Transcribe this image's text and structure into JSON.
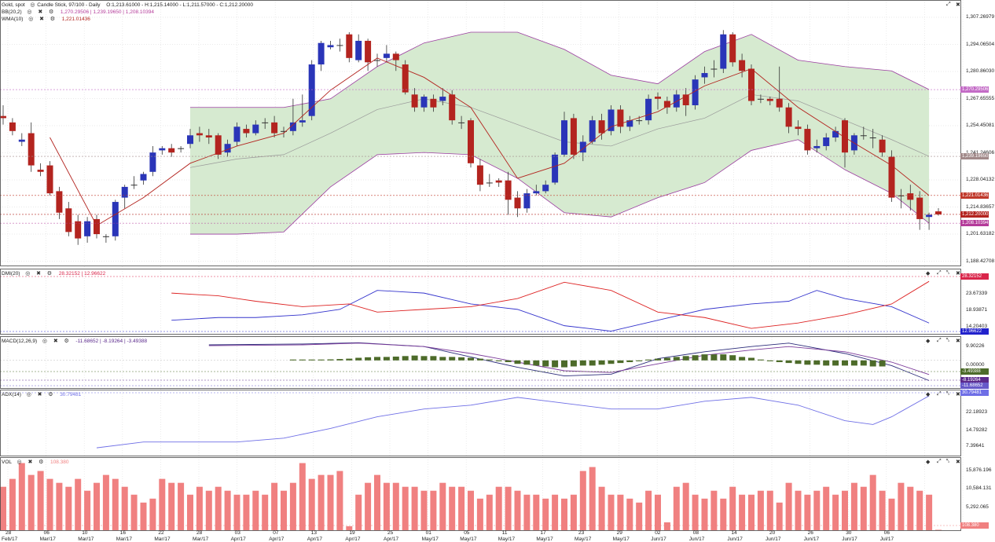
{
  "header": {
    "symbol_name": "Gold, spot",
    "chart_info": "Candle Stick, 97/100 - Daily",
    "ohlc": "O:1,213.61000 - H:1,215.14000 - L:1,211.57000 - C:1,212.20000",
    "bb_label": "BB(20,2)",
    "bb_values": "1,270.29506 | 1,239.19650 | 1,208.10394",
    "wma_label": "WMA(10)",
    "wma_value": "1,221.01436"
  },
  "icons": {
    "eye": "eye-icon",
    "close": "close-icon",
    "gear": "gear-icon",
    "resize": "resize-icon"
  },
  "colors": {
    "up": "#2a35b8",
    "down": "#b3241f",
    "bb_fill": "#d6ead0",
    "bb_line": "#9b3da0",
    "wma": "#b3241f",
    "vol": "#f08080",
    "macd_hist": "#4d6b2a",
    "dmi_plus": "#3333cc",
    "dmi_minus": "#dd2222"
  },
  "price_axis": [
    "1,307.26979",
    "1,294.06504",
    "1,280.86030",
    "1,267.65555",
    "1,254.45081",
    "1,241.24606",
    "1,228.04132",
    "1,214.83657",
    "1,201.63182",
    "1,188.42708"
  ],
  "price_tags": [
    {
      "text": "1,270.29506",
      "color": "#c36bc6",
      "price": 1270.3
    },
    {
      "text": "1,239.19650",
      "color": "#a18989",
      "price": 1239.2
    },
    {
      "text": "1,221.01436",
      "color": "#c0392b",
      "price": 1221.0
    },
    {
      "text": "1,212.20000",
      "color": "#b3241f",
      "price": 1212.2
    },
    {
      "text": "1,208.10394",
      "color": "#b43b9a",
      "price": 1208.1
    }
  ],
  "dmi": {
    "label": "DMI(20)",
    "value": "28.32152 | 12.96622",
    "axis": [
      "23.67339",
      "18.93871",
      "14.20403"
    ],
    "tags": [
      {
        "text": "28.32152",
        "color": "#d9254a"
      },
      {
        "text": "12.96622",
        "color": "#2222cc"
      }
    ]
  },
  "macd": {
    "label": "MACD(12,26,9)",
    "value": "-11.68652 | -8.19264 | -3.49388",
    "axis": [
      "9.90226",
      "0.00000"
    ],
    "tags": [
      {
        "text": "-3.49388",
        "color": "#4d6b2a"
      },
      {
        "text": "-8.19264",
        "color": "#5b2a8c"
      },
      {
        "text": "-11.68652",
        "color": "#6659c9"
      }
    ]
  },
  "adx": {
    "label": "ADX(14)",
    "value": "30.79481",
    "axis": [
      "22.18923",
      "14.79282",
      "7.39641"
    ],
    "tags": [
      {
        "text": "30.79481",
        "color": "#6f6fe6"
      }
    ]
  },
  "vol": {
    "label": "VOL",
    "value": "108.380",
    "axis": [
      "15,876.196",
      "10,584.131",
      "5,292.065"
    ],
    "tags": [
      {
        "text": "108.380",
        "color": "#f08080"
      }
    ]
  },
  "dates": [
    {
      "d": "28",
      "m": "Feb/17"
    },
    {
      "d": "06",
      "m": "Mar/17"
    },
    {
      "d": "10",
      "m": "Mar/17"
    },
    {
      "d": "16",
      "m": "Mar/17"
    },
    {
      "d": "22",
      "m": "Mar/17"
    },
    {
      "d": "28",
      "m": "Mar/17"
    },
    {
      "d": "03",
      "m": "Apr/17"
    },
    {
      "d": "07",
      "m": "Apr/17"
    },
    {
      "d": "13",
      "m": "Apr/17"
    },
    {
      "d": "19",
      "m": "Apr/17"
    },
    {
      "d": "25",
      "m": "Apr/17"
    },
    {
      "d": "01",
      "m": "May/17"
    },
    {
      "d": "05",
      "m": "May/17"
    },
    {
      "d": "11",
      "m": "May/17"
    },
    {
      "d": "17",
      "m": "May/17"
    },
    {
      "d": "23",
      "m": "May/17"
    },
    {
      "d": "29",
      "m": "May/17"
    },
    {
      "d": "02",
      "m": "Jun/17"
    },
    {
      "d": "08",
      "m": "Jun/17"
    },
    {
      "d": "14",
      "m": "Jun/17"
    },
    {
      "d": "20",
      "m": "Jun/17"
    },
    {
      "d": "26",
      "m": "Jun/17"
    },
    {
      "d": "30",
      "m": "Jun/17"
    },
    {
      "d": "06",
      "m": "Jul/17"
    }
  ],
  "chart_data": {
    "type": "candlestick",
    "price_range": [
      1188.4,
      1312.0
    ],
    "candles": [
      [
        1258,
        1257,
        1263,
        1254
      ],
      [
        1255,
        1251,
        1257,
        1249
      ],
      [
        1246,
        1247,
        1250,
        1244
      ],
      [
        1250,
        1235,
        1255,
        1232
      ],
      [
        1233,
        1232,
        1236,
        1230
      ],
      [
        1235,
        1222,
        1237,
        1221
      ],
      [
        1223,
        1213,
        1225,
        1210
      ],
      [
        1215,
        1204,
        1218,
        1202
      ],
      [
        1209,
        1201,
        1212,
        1198
      ],
      [
        1202,
        1209,
        1211,
        1199
      ],
      [
        1210,
        1203,
        1212,
        1201
      ],
      [
        1202,
        1202,
        1203,
        1199
      ],
      [
        1202,
        1218,
        1219,
        1200
      ],
      [
        1220,
        1225,
        1226,
        1215
      ],
      [
        1226,
        1226,
        1230,
        1224
      ],
      [
        1228,
        1231,
        1232,
        1226
      ],
      [
        1232,
        1241,
        1244,
        1230
      ],
      [
        1242,
        1243,
        1244,
        1240
      ],
      [
        1243,
        1241,
        1245,
        1239
      ],
      [
        1243,
        1243,
        1244,
        1241
      ],
      [
        1245,
        1249,
        1252,
        1243
      ],
      [
        1250,
        1249,
        1253,
        1246
      ],
      [
        1249,
        1248,
        1252,
        1245
      ],
      [
        1249,
        1240,
        1250,
        1238
      ],
      [
        1241,
        1245,
        1247,
        1239
      ],
      [
        1246,
        1253,
        1255,
        1244
      ],
      [
        1252,
        1250,
        1254,
        1248
      ],
      [
        1250,
        1254,
        1256,
        1249
      ],
      [
        1255,
        1255,
        1257,
        1252
      ],
      [
        1255,
        1250,
        1258,
        1248
      ],
      [
        1251,
        1251,
        1253,
        1248
      ],
      [
        1251,
        1255,
        1266,
        1249
      ],
      [
        1255,
        1256,
        1268,
        1253
      ],
      [
        1258,
        1282,
        1284,
        1256
      ],
      [
        1282,
        1292,
        1293,
        1279
      ],
      [
        1290,
        1291,
        1293,
        1289
      ],
      [
        1291,
        1291,
        1294,
        1288
      ],
      [
        1296,
        1285,
        1297,
        1283
      ],
      [
        1284,
        1293,
        1296,
        1283
      ],
      [
        1293,
        1283,
        1294,
        1279
      ],
      [
        1284,
        1284,
        1287,
        1281
      ],
      [
        1285,
        1287,
        1291,
        1283
      ],
      [
        1287,
        1284,
        1288,
        1279
      ],
      [
        1282,
        1269,
        1284,
        1268
      ],
      [
        1268,
        1262,
        1271,
        1260
      ],
      [
        1262,
        1267,
        1268,
        1260
      ],
      [
        1266,
        1262,
        1268,
        1260
      ],
      [
        1265,
        1267,
        1271,
        1263
      ],
      [
        1268,
        1256,
        1270,
        1254
      ],
      [
        1255,
        1255,
        1258,
        1252
      ],
      [
        1256,
        1236,
        1257,
        1234
      ],
      [
        1235,
        1226,
        1238,
        1223
      ],
      [
        1227,
        1227,
        1231,
        1225
      ],
      [
        1228,
        1227,
        1229,
        1225
      ],
      [
        1228,
        1219,
        1232,
        1212
      ],
      [
        1220,
        1215,
        1223,
        1211
      ],
      [
        1215,
        1222,
        1224,
        1213
      ],
      [
        1222,
        1223,
        1226,
        1221
      ],
      [
        1223,
        1226,
        1228,
        1222
      ],
      [
        1227,
        1240,
        1241,
        1226
      ],
      [
        1240,
        1256,
        1260,
        1239
      ],
      [
        1257,
        1240,
        1259,
        1238
      ],
      [
        1241,
        1246,
        1249,
        1237
      ],
      [
        1246,
        1256,
        1258,
        1245
      ],
      [
        1256,
        1250,
        1259,
        1247
      ],
      [
        1251,
        1261,
        1263,
        1249
      ],
      [
        1261,
        1253,
        1263,
        1250
      ],
      [
        1253,
        1256,
        1258,
        1251
      ],
      [
        1256,
        1256,
        1258,
        1254
      ],
      [
        1256,
        1266,
        1268,
        1254
      ],
      [
        1267,
        1266,
        1269,
        1261
      ],
      [
        1265,
        1262,
        1267,
        1259
      ],
      [
        1262,
        1268,
        1270,
        1260
      ],
      [
        1268,
        1263,
        1271,
        1258
      ],
      [
        1263,
        1275,
        1277,
        1261
      ],
      [
        1276,
        1278,
        1281,
        1273
      ],
      [
        1280,
        1280,
        1284,
        1276
      ],
      [
        1280,
        1296,
        1298,
        1278
      ],
      [
        1296,
        1283,
        1297,
        1281
      ],
      [
        1284,
        1279,
        1287,
        1276
      ],
      [
        1280,
        1265,
        1282,
        1263
      ],
      [
        1266,
        1266,
        1268,
        1264
      ],
      [
        1266,
        1265,
        1267,
        1263
      ],
      [
        1266,
        1262,
        1281,
        1260
      ],
      [
        1262,
        1253,
        1264,
        1250
      ],
      [
        1253,
        1252,
        1256,
        1249
      ],
      [
        1252,
        1242,
        1254,
        1240
      ],
      [
        1243,
        1244,
        1247,
        1241
      ],
      [
        1244,
        1248,
        1250,
        1242
      ],
      [
        1248,
        1251,
        1253,
        1246
      ],
      [
        1256,
        1241,
        1257,
        1234
      ],
      [
        1242,
        1249,
        1250,
        1240
      ],
      [
        1249,
        1249,
        1253,
        1247
      ],
      [
        1248,
        1248,
        1252,
        1243
      ],
      [
        1247,
        1241,
        1249,
        1239
      ],
      [
        1239,
        1220,
        1242,
        1218
      ],
      [
        1221,
        1221,
        1224,
        1215
      ],
      [
        1222,
        1219,
        1226,
        1214
      ],
      [
        1220,
        1210,
        1223,
        1205
      ],
      [
        1211,
        1212,
        1213,
        1205
      ],
      [
        1213.6,
        1212.2,
        1215.1,
        1211.6
      ]
    ],
    "bb_upper": [
      [
        20,
        1262
      ],
      [
        25,
        1262
      ],
      [
        30,
        1262
      ],
      [
        35,
        1266
      ],
      [
        40,
        1281
      ],
      [
        45,
        1292
      ],
      [
        50,
        1297
      ],
      [
        55,
        1297
      ],
      [
        60,
        1289
      ],
      [
        65,
        1277
      ],
      [
        70,
        1273
      ],
      [
        75,
        1288
      ],
      [
        80,
        1296
      ],
      [
        85,
        1284
      ],
      [
        90,
        1281
      ],
      [
        95,
        1279
      ],
      [
        99,
        1270.3
      ]
    ],
    "bb_lower": [
      [
        20,
        1203
      ],
      [
        25,
        1203
      ],
      [
        30,
        1204
      ],
      [
        35,
        1225
      ],
      [
        40,
        1240
      ],
      [
        45,
        1241
      ],
      [
        50,
        1240
      ],
      [
        55,
        1229
      ],
      [
        60,
        1213
      ],
      [
        65,
        1211
      ],
      [
        70,
        1220
      ],
      [
        75,
        1227
      ],
      [
        80,
        1242
      ],
      [
        85,
        1247
      ],
      [
        90,
        1233
      ],
      [
        95,
        1222
      ],
      [
        99,
        1208.1
      ]
    ],
    "bb_mid": [
      [
        20,
        1234
      ],
      [
        25,
        1238
      ],
      [
        30,
        1240
      ],
      [
        35,
        1250
      ],
      [
        40,
        1261
      ],
      [
        45,
        1266
      ],
      [
        50,
        1262
      ],
      [
        55,
        1254
      ],
      [
        60,
        1246
      ],
      [
        65,
        1244
      ],
      [
        70,
        1252
      ],
      [
        75,
        1257
      ],
      [
        80,
        1268
      ],
      [
        85,
        1265
      ],
      [
        90,
        1256
      ],
      [
        95,
        1247
      ],
      [
        99,
        1239.2
      ]
    ],
    "wma": [
      [
        5,
        1248
      ],
      [
        10,
        1207
      ],
      [
        15,
        1220
      ],
      [
        20,
        1236
      ],
      [
        25,
        1244
      ],
      [
        30,
        1250
      ],
      [
        35,
        1270
      ],
      [
        40,
        1285
      ],
      [
        45,
        1276
      ],
      [
        50,
        1262
      ],
      [
        55,
        1229
      ],
      [
        60,
        1236
      ],
      [
        65,
        1253
      ],
      [
        70,
        1260
      ],
      [
        75,
        1272
      ],
      [
        80,
        1280
      ],
      [
        85,
        1262
      ],
      [
        90,
        1248
      ],
      [
        95,
        1235
      ],
      [
        99,
        1221.0
      ]
    ],
    "dmi_plus": [
      [
        18,
        14
      ],
      [
        23,
        15
      ],
      [
        27,
        15
      ],
      [
        32,
        16
      ],
      [
        36,
        18
      ],
      [
        40,
        25
      ],
      [
        45,
        24
      ],
      [
        50,
        20
      ],
      [
        55,
        18
      ],
      [
        60,
        12
      ],
      [
        65,
        10
      ],
      [
        70,
        14
      ],
      [
        75,
        18
      ],
      [
        80,
        20
      ],
      [
        84,
        21
      ],
      [
        87,
        25
      ],
      [
        90,
        22
      ],
      [
        95,
        19
      ],
      [
        99,
        12.97
      ]
    ],
    "dmi_minus": [
      [
        18,
        24
      ],
      [
        23,
        23
      ],
      [
        27,
        21
      ],
      [
        32,
        19
      ],
      [
        37,
        20
      ],
      [
        40,
        17
      ],
      [
        45,
        18
      ],
      [
        50,
        19
      ],
      [
        55,
        22
      ],
      [
        60,
        28
      ],
      [
        65,
        25
      ],
      [
        70,
        17
      ],
      [
        75,
        15
      ],
      [
        80,
        11
      ],
      [
        85,
        13
      ],
      [
        90,
        16
      ],
      [
        95,
        20
      ],
      [
        99,
        28.32
      ]
    ],
    "macd_line": [
      [
        22,
        9
      ],
      [
        32,
        9.5
      ],
      [
        38,
        10.2
      ],
      [
        45,
        8
      ],
      [
        50,
        2
      ],
      [
        55,
        -4
      ],
      [
        60,
        -9
      ],
      [
        65,
        -8
      ],
      [
        70,
        1
      ],
      [
        75,
        5
      ],
      [
        80,
        8
      ],
      [
        84,
        10
      ],
      [
        90,
        4
      ],
      [
        95,
        -3
      ],
      [
        99,
        -11.69
      ]
    ],
    "macd_signal": [
      [
        22,
        8.5
      ],
      [
        32,
        9
      ],
      [
        38,
        10
      ],
      [
        45,
        8
      ],
      [
        50,
        4
      ],
      [
        55,
        -1
      ],
      [
        60,
        -6
      ],
      [
        65,
        -7
      ],
      [
        70,
        -2
      ],
      [
        75,
        3
      ],
      [
        80,
        6
      ],
      [
        84,
        8
      ],
      [
        90,
        5
      ],
      [
        95,
        -1
      ],
      [
        99,
        -8.19
      ]
    ],
    "macd_hist": [
      0.5,
      0.5,
      0.5,
      0.5,
      0.6,
      0.8,
      1,
      1.5,
      1.8,
      2,
      2,
      2.2,
      2.5,
      2.8,
      2.5,
      2.5,
      2,
      2,
      1.8,
      1.5,
      1,
      0.5,
      -0.5,
      -1,
      -2,
      -2.5,
      -3,
      -3.5,
      -4,
      -4,
      -3.5,
      -3,
      -3,
      -2.5,
      -2,
      -1.5,
      -1,
      -0.5,
      0.5,
      1,
      1.5,
      2,
      2.5,
      3,
      3.5,
      3.5,
      3.5,
      3,
      2,
      1.5,
      0.5,
      -0.5,
      -1,
      -1.5,
      -2,
      -2.5,
      -2.5,
      -3,
      -3,
      -3,
      -3,
      -3,
      -3.5,
      -3.5
    ],
    "adx": [
      [
        10,
        4
      ],
      [
        15,
        7
      ],
      [
        20,
        7
      ],
      [
        25,
        7
      ],
      [
        30,
        9
      ],
      [
        35,
        14
      ],
      [
        40,
        20
      ],
      [
        45,
        24
      ],
      [
        50,
        26
      ],
      [
        55,
        30
      ],
      [
        60,
        27
      ],
      [
        65,
        24
      ],
      [
        70,
        24
      ],
      [
        75,
        28
      ],
      [
        80,
        30
      ],
      [
        85,
        26
      ],
      [
        90,
        18
      ],
      [
        93,
        16
      ],
      [
        95,
        20
      ],
      [
        99,
        30.79
      ]
    ],
    "volume": [
      11000,
      13000,
      17000,
      14000,
      15000,
      13000,
      12000,
      11000,
      13000,
      10000,
      12000,
      14000,
      13000,
      11000,
      9000,
      7000,
      8000,
      13000,
      12000,
      12000,
      9000,
      11000,
      10000,
      11000,
      10000,
      9000,
      9000,
      10000,
      9000,
      12000,
      10000,
      12000,
      17000,
      13000,
      14000,
      14000,
      15000,
      1000,
      9000,
      12000,
      14000,
      12000,
      12000,
      11000,
      11000,
      10000,
      10000,
      12000,
      11000,
      11000,
      10000,
      8000,
      9000,
      11000,
      11000,
      10000,
      9000,
      9000,
      8000,
      9000,
      8000,
      9000,
      15000,
      16000,
      11000,
      9000,
      9000,
      8000,
      7000,
      10000,
      9000,
      2000,
      11000,
      12000,
      9000,
      8000,
      10000,
      8000,
      11000,
      9000,
      9000,
      10000,
      10000,
      7000,
      12000,
      10000,
      9000,
      10000,
      11000,
      9000,
      10000,
      12000,
      11000,
      14000,
      10000,
      8000,
      12000,
      11000,
      10000,
      9000,
      108
    ]
  }
}
